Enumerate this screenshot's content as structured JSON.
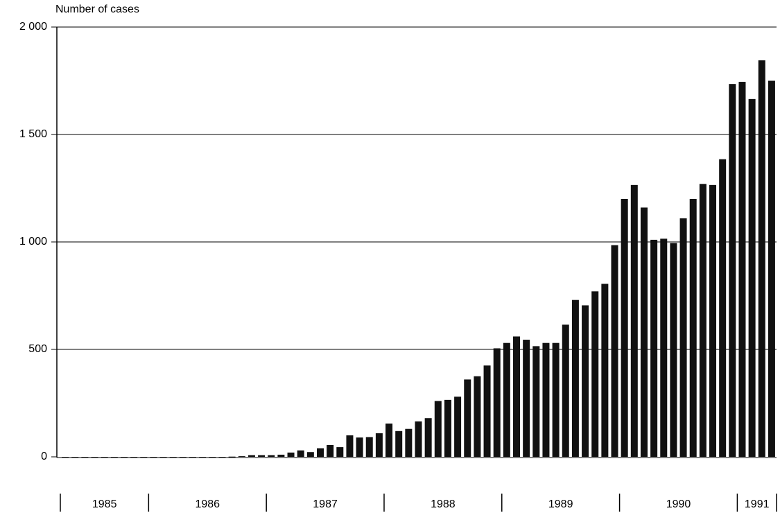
{
  "chart_data": {
    "type": "bar",
    "y_label": "Number of cases",
    "categories": [
      null,
      null,
      null,
      null,
      null,
      null,
      null,
      null,
      null,
      null,
      null,
      null,
      null,
      null,
      null,
      null,
      null,
      null,
      null,
      null,
      null,
      null,
      null,
      null,
      null,
      null,
      null,
      null,
      null,
      null,
      null,
      null,
      null,
      null,
      null,
      null,
      null,
      null,
      null,
      null,
      null,
      null,
      null,
      null,
      null,
      null,
      null,
      null,
      null,
      null,
      null,
      null,
      null,
      null,
      null,
      null,
      null,
      null,
      null,
      null,
      null,
      null,
      null,
      null,
      null,
      null,
      null,
      null,
      null,
      null,
      null,
      null,
      null
    ],
    "values": [
      0,
      0,
      0,
      0,
      0,
      0,
      0,
      0,
      0,
      0,
      0,
      0,
      0,
      0,
      0,
      0,
      0,
      1,
      3,
      8,
      8,
      8,
      10,
      20,
      30,
      22,
      40,
      55,
      45,
      100,
      90,
      92,
      110,
      155,
      120,
      130,
      165,
      180,
      260,
      265,
      280,
      360,
      375,
      425,
      505,
      530,
      560,
      545,
      515,
      530,
      530,
      615,
      730,
      705,
      770,
      805,
      985,
      1200,
      1265,
      1160,
      1010,
      1015,
      995,
      1110,
      1200,
      1270,
      1265,
      1385,
      1735,
      1745,
      1665,
      1845,
      1750
    ],
    "groups": [
      {
        "label": "1985",
        "count": 9
      },
      {
        "label": "1986",
        "count": 12
      },
      {
        "label": "1987",
        "count": 12
      },
      {
        "label": "1988",
        "count": 12
      },
      {
        "label": "1989",
        "count": 12
      },
      {
        "label": "1990",
        "count": 12
      },
      {
        "label": "1991",
        "count": 4
      }
    ],
    "color": "#111111",
    "ylim": [
      0,
      2000
    ],
    "yticks": [
      0,
      500,
      {
        "value": 1000,
        "label": "1 000"
      },
      {
        "value": 1500,
        "label": "1 500"
      },
      {
        "value": 2000,
        "label": "2 000"
      }
    ],
    "grid": true
  }
}
